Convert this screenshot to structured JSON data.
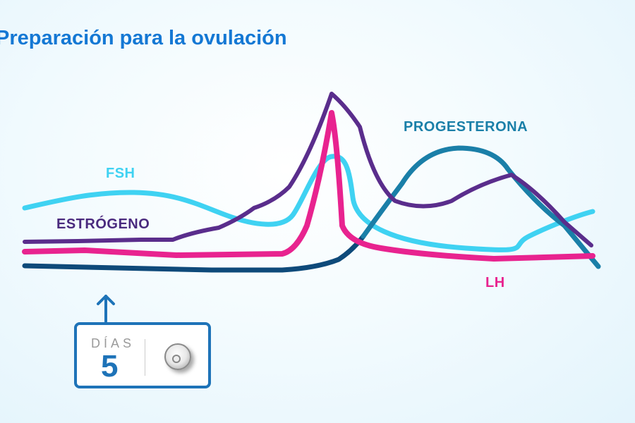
{
  "title": "Preparación para la ovulación",
  "labels": {
    "fsh": "FSH",
    "estrogen": "ESTRÓGENO",
    "progesterone": "PROGESTERONA",
    "lh": "LH"
  },
  "colors": {
    "title": "#1478d4",
    "fsh": "#3fd2f2",
    "estrogen": "#5a2d8c",
    "lh": "#e8238f",
    "progesterone": "#1a7fa8",
    "baseline": "#0e4a7a",
    "control": "#1e73b8"
  },
  "day_control": {
    "label": "DÍAS",
    "value": "5",
    "icon": "dial-knob-icon"
  }
}
